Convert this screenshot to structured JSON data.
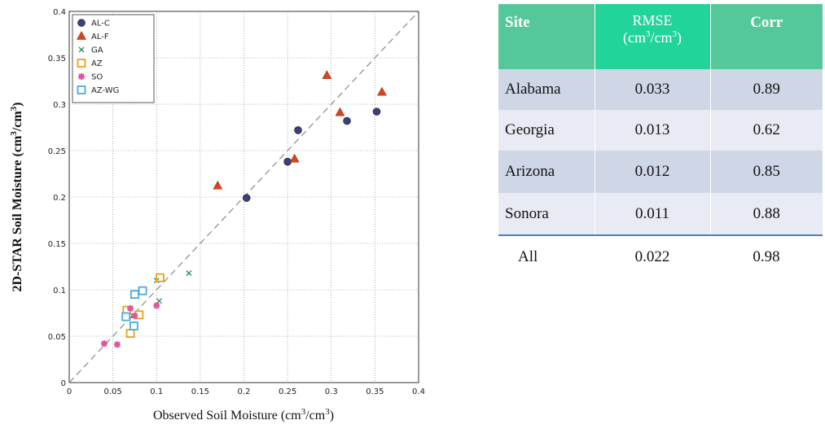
{
  "chart_data": {
    "type": "scatter",
    "xlabel_main": "Observed Soil Moisture",
    "ylabel_main": "2D-STAR Soil Moisture",
    "unit_prefix": "(cm",
    "unit_mid": "/cm",
    "unit_end": ")",
    "unit_sup": "3",
    "xlim": [
      0,
      0.4
    ],
    "ylim": [
      0,
      0.4
    ],
    "x_ticks": [
      "0",
      "0.05",
      "0.1",
      "0.15",
      "0.2",
      "0.25",
      "0.3",
      "0.35",
      "0.4"
    ],
    "y_ticks": [
      "0",
      "0.05",
      "0.1",
      "0.15",
      "0.2",
      "0.25",
      "0.3",
      "0.35",
      "0.4"
    ],
    "grid": true,
    "one_to_one_line": true,
    "legend_position": "top-left",
    "series": [
      {
        "name": "AL-C",
        "marker": "circle",
        "color": "#3b3f7a",
        "points": [
          [
            0.203,
            0.199
          ],
          [
            0.25,
            0.238
          ],
          [
            0.262,
            0.272
          ],
          [
            0.318,
            0.282
          ],
          [
            0.352,
            0.292
          ]
        ]
      },
      {
        "name": "AL-F",
        "marker": "triangle",
        "color": "#d5461d",
        "points": [
          [
            0.17,
            0.212
          ],
          [
            0.258,
            0.241
          ],
          [
            0.295,
            0.331
          ],
          [
            0.31,
            0.291
          ],
          [
            0.358,
            0.313
          ]
        ]
      },
      {
        "name": "GA",
        "marker": "x",
        "color": "#2e8b57",
        "points": [
          [
            0.1,
            0.11
          ],
          [
            0.103,
            0.088
          ],
          [
            0.137,
            0.118
          ],
          [
            0.073,
            0.072
          ]
        ]
      },
      {
        "name": "AZ",
        "marker": "square",
        "color": "#e8a317",
        "points": [
          [
            0.104,
            0.113
          ],
          [
            0.066,
            0.078
          ],
          [
            0.08,
            0.073
          ],
          [
            0.07,
            0.053
          ]
        ]
      },
      {
        "name": "SO",
        "marker": "star",
        "color": "#e0559a",
        "points": [
          [
            0.04,
            0.042
          ],
          [
            0.055,
            0.041
          ],
          [
            0.07,
            0.08
          ],
          [
            0.075,
            0.072
          ],
          [
            0.1,
            0.083
          ]
        ]
      },
      {
        "name": "AZ-WG",
        "marker": "square-open",
        "color": "#4aa9e0",
        "points": [
          [
            0.075,
            0.095
          ],
          [
            0.084,
            0.099
          ],
          [
            0.065,
            0.071
          ],
          [
            0.074,
            0.061
          ]
        ]
      }
    ]
  },
  "table": {
    "headers": {
      "site": "Site",
      "rmse": "RMSE",
      "rmse_unit_a": "(cm",
      "rmse_unit_b": "/cm",
      "rmse_unit_c": ")",
      "rmse_unit_sup": "3",
      "corr": "Corr"
    },
    "rows": [
      {
        "site": "Alabama",
        "rmse": "0.033",
        "corr": "0.89"
      },
      {
        "site": "Georgia",
        "rmse": "0.013",
        "corr": "0.62"
      },
      {
        "site": "Arizona",
        "rmse": "0.012",
        "corr": "0.85"
      },
      {
        "site": "Sonora",
        "rmse": "0.011",
        "corr": "0.88"
      }
    ],
    "all_row": {
      "site": "All",
      "rmse": "0.022",
      "corr": "0.98"
    }
  }
}
